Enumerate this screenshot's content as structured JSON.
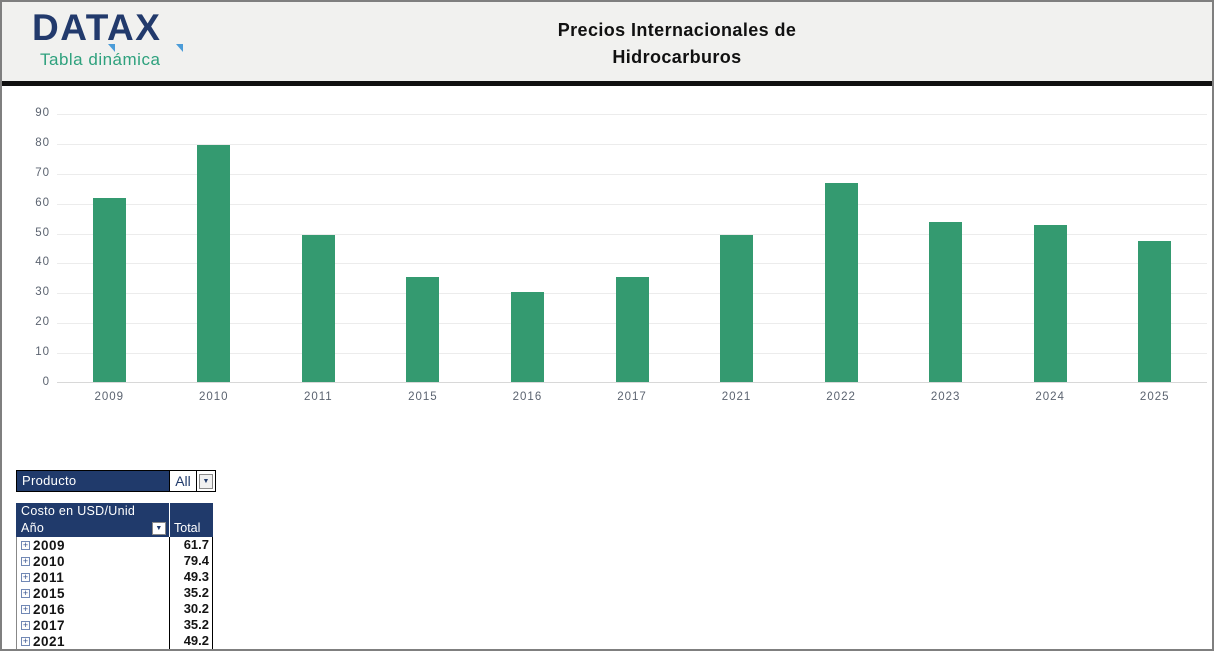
{
  "header": {
    "logo": {
      "text": "DATAX",
      "subtitle": "Tabla dinámica"
    },
    "title_line1": "Precios Internacionales de",
    "title_line2": "Hidrocarburos"
  },
  "chart_data": {
    "type": "bar",
    "title": "",
    "series_name": "Total",
    "categories": [
      "2009",
      "2010",
      "2011",
      "2015",
      "2016",
      "2017",
      "2021",
      "2022",
      "2023",
      "2024",
      "2025"
    ],
    "values": [
      61.7,
      79.4,
      49.3,
      35.2,
      30.2,
      35.2,
      49.2,
      66.5,
      53.5,
      52.7,
      47.1
    ],
    "ylim": [
      0,
      90
    ],
    "yticks": [
      0,
      10,
      20,
      30,
      40,
      50,
      60,
      70,
      80,
      90
    ],
    "grid": true,
    "legend": false,
    "bar_color": "#349a70",
    "xlabel": "",
    "ylabel": ""
  },
  "filter": {
    "label": "Producto",
    "value": "All"
  },
  "pivot": {
    "title": "Costo en USD/Unid",
    "row_header": "Año",
    "total_header": "Total",
    "rows": [
      {
        "year": "2009",
        "total": "61.7"
      },
      {
        "year": "2010",
        "total": "79.4"
      },
      {
        "year": "2011",
        "total": "49.3"
      },
      {
        "year": "2015",
        "total": "35.2"
      },
      {
        "year": "2016",
        "total": "30.2"
      },
      {
        "year": "2017",
        "total": "35.2"
      },
      {
        "year": "2021",
        "total": "49.2"
      }
    ]
  },
  "icons": {
    "dropdown_arrow": "▼",
    "expand_plus": "+"
  },
  "colors": {
    "navy": "#203a6b",
    "teal": "#2ea17d",
    "bar_green": "#349a70",
    "accent_blue": "#4b9cd8",
    "header_bg": "#f1f1ef",
    "axis_text": "#5b6370"
  }
}
